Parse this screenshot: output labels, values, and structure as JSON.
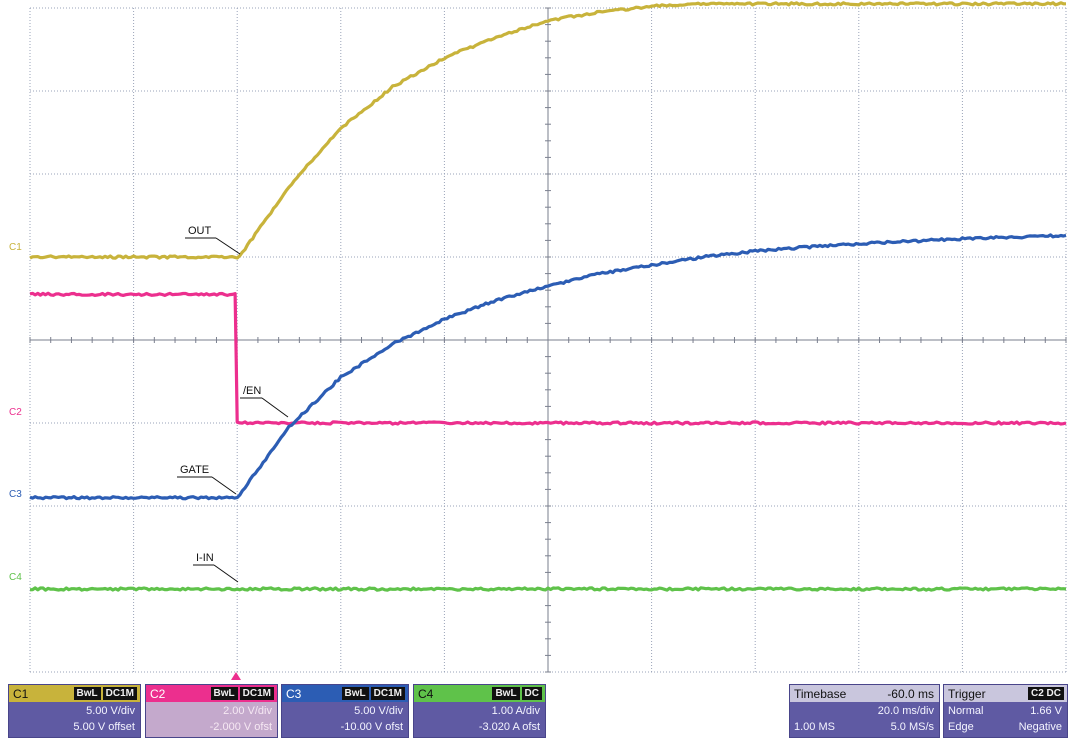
{
  "waveform_labels": {
    "out": "OUT",
    "en": "/EN",
    "gate": "GATE",
    "iin": "I-IN"
  },
  "channel_markers": {
    "c1": "C1",
    "c2": "C2",
    "c3": "C3",
    "c4": "C4"
  },
  "colors": {
    "c1": "#c8b33b",
    "c2": "#ec2f8e",
    "c3": "#2c5db4",
    "c4": "#5fc24a",
    "grid": "#9aa3b8",
    "panel": "#5f5aa3"
  },
  "channels": [
    {
      "name": "C1",
      "tags": [
        "BwL",
        "DC1M"
      ],
      "scale": "5.00 V/div",
      "offset": "5.00 V offset"
    },
    {
      "name": "C2",
      "tags": [
        "BwL",
        "DC1M"
      ],
      "scale": "2.00 V/div",
      "offset": "-2.000 V ofst"
    },
    {
      "name": "C3",
      "tags": [
        "BwL",
        "DC1M"
      ],
      "scale": "5.00 V/div",
      "offset": "-10.00 V ofst"
    },
    {
      "name": "C4",
      "tags": [
        "BwL",
        "DC"
      ],
      "scale": "1.00 A/div",
      "offset": "-3.020 A ofst"
    }
  ],
  "timebase": {
    "title": "Timebase",
    "value": "-60.0 ms",
    "per_div": "20.0 ms/div",
    "samples": "1.00 MS",
    "rate": "5.0 MS/s"
  },
  "trigger": {
    "title": "Trigger",
    "source_tag": "C2 DC",
    "mode": "Normal",
    "level": "1.66 V",
    "type": "Edge",
    "slope": "Negative"
  },
  "chart_data": {
    "type": "line",
    "title": "",
    "xlabel": "",
    "ylabel": "",
    "x_divisions": 10,
    "y_divisions": 8,
    "x_per_div": "20.0 ms/div",
    "grid": true,
    "series": [
      {
        "name": "OUT",
        "channel": "C1",
        "units": "divisions",
        "x": [
          0,
          1,
          2,
          2.05,
          2.5,
          3,
          3.5,
          4,
          4.5,
          5,
          5.5,
          6,
          6.5,
          7,
          8,
          9,
          10
        ],
        "y": [
          5.0,
          5.0,
          5.0,
          5.05,
          5.85,
          6.55,
          7.05,
          7.4,
          7.65,
          7.85,
          7.95,
          8.02,
          8.05,
          8.05,
          8.05,
          8.05,
          8.05
        ]
      },
      {
        "name": "/EN",
        "channel": "C2",
        "units": "divisions",
        "x": [
          0,
          1,
          1.98,
          2.0,
          3,
          4,
          5,
          6,
          7,
          8,
          9,
          10
        ],
        "y": [
          4.55,
          4.55,
          4.55,
          3.0,
          3.0,
          3.0,
          3.0,
          3.0,
          3.0,
          3.0,
          3.0,
          3.0
        ]
      },
      {
        "name": "GATE",
        "channel": "C3",
        "units": "divisions",
        "x": [
          0,
          1,
          2,
          2.5,
          3,
          3.5,
          4,
          4.5,
          5,
          5.5,
          6,
          6.5,
          7,
          7.5,
          8,
          9,
          10
        ],
        "y": [
          2.1,
          2.1,
          2.1,
          2.95,
          3.55,
          3.95,
          4.25,
          4.48,
          4.65,
          4.8,
          4.9,
          5.0,
          5.07,
          5.12,
          5.16,
          5.22,
          5.26
        ]
      },
      {
        "name": "I-IN",
        "channel": "C4",
        "units": "divisions",
        "x": [
          0,
          2,
          4,
          6,
          8,
          10
        ],
        "y": [
          1.0,
          1.0,
          1.0,
          1.0,
          1.0,
          1.0
        ]
      }
    ]
  }
}
